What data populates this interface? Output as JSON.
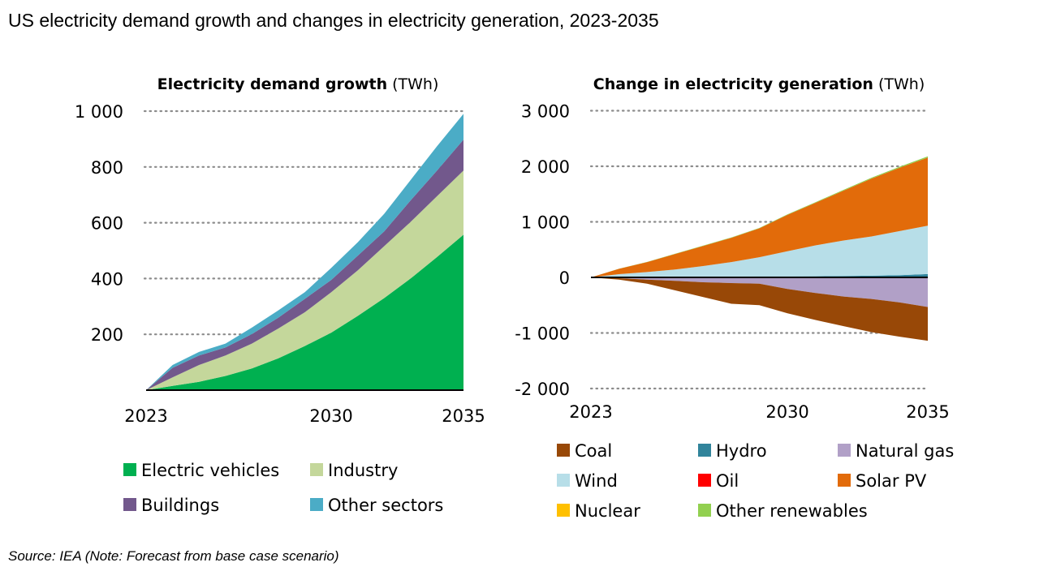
{
  "title": "US electricity demand growth and changes in electricity generation, 2023-2035",
  "source": "Source: IEA (Note: Forecast from base case scenario)",
  "chart_data": [
    {
      "type": "area",
      "stacked": true,
      "title_bold": "Electricity demand growth",
      "title_unit": "(TWh)",
      "x": [
        2023,
        2024,
        2025,
        2026,
        2027,
        2028,
        2029,
        2030,
        2031,
        2032,
        2033,
        2034,
        2035
      ],
      "x_tick_labels": [
        "2023",
        "2030",
        "2035"
      ],
      "x_tick_values": [
        2023,
        2030,
        2035
      ],
      "ylim": [
        0,
        1000
      ],
      "y_tick_values": [
        200,
        400,
        600,
        800,
        1000
      ],
      "y_tick_labels": [
        "200",
        "400",
        "600",
        "800",
        "1 000"
      ],
      "grid": "horizontal dotted",
      "legend_placement": "bottom",
      "series": [
        {
          "name": "Electric vehicles",
          "color": "#00b050",
          "values": [
            0,
            15,
            30,
            51,
            78,
            114,
            158,
            206,
            266,
            330,
            400,
            477,
            557
          ]
        },
        {
          "name": "Industry",
          "color": "#c4d79b",
          "values": [
            0,
            31,
            60,
            73,
            89,
            107,
            121,
            145,
            163,
            186,
            203,
            218,
            230
          ]
        },
        {
          "name": "Buildings",
          "color": "#72588c",
          "values": [
            0,
            34,
            34,
            29,
            34,
            39,
            48,
            44,
            53,
            53,
            77,
            92,
            111
          ]
        },
        {
          "name": "Other sectors",
          "color": "#4bacc6",
          "values": [
            0,
            10,
            13,
            14,
            23,
            26,
            24,
            43,
            48,
            63,
            73,
            87,
            92
          ]
        }
      ]
    },
    {
      "type": "area",
      "stacked": true,
      "title_bold": "Change in electricity generation",
      "title_unit": "(TWh)",
      "x": [
        2023,
        2024,
        2025,
        2026,
        2027,
        2028,
        2029,
        2030,
        2031,
        2032,
        2033,
        2034,
        2035
      ],
      "x_tick_labels": [
        "2023",
        "2030",
        "2035"
      ],
      "x_tick_values": [
        2023,
        2030,
        2035
      ],
      "ylim": [
        -2000,
        3000
      ],
      "y_tick_values": [
        -2000,
        -1000,
        0,
        1000,
        2000,
        3000
      ],
      "y_tick_labels": [
        "-2 000",
        "-1 000",
        "0",
        "1 000",
        "2 000",
        "3 000"
      ],
      "grid": "horizontal dotted",
      "legend_placement": "bottom",
      "series": [
        {
          "name": "Coal",
          "color": "#984807",
          "values": [
            0,
            -24,
            -73,
            -170,
            -267,
            -373,
            -388,
            -436,
            -485,
            -534,
            -597,
            -616,
            -607
          ]
        },
        {
          "name": "Hydro",
          "color": "#31849b",
          "values": [
            0,
            3,
            5,
            8,
            10,
            12,
            15,
            18,
            20,
            25,
            30,
            40,
            60
          ]
        },
        {
          "name": "Natural gas",
          "color": "#b1a0c7",
          "values": [
            0,
            -13,
            -36,
            -59,
            -82,
            -97,
            -106,
            -203,
            -274,
            -337,
            -380,
            -443,
            -525
          ]
        },
        {
          "name": "Wind",
          "color": "#b7dee8",
          "values": [
            0,
            50,
            84,
            125,
            188,
            260,
            347,
            452,
            557,
            639,
            707,
            794,
            871
          ]
        },
        {
          "name": "Oil",
          "color": "#ff0000",
          "values": [
            0,
            -2,
            -3,
            -4,
            -5,
            -5,
            -6,
            -6,
            -7,
            -7,
            -8,
            -8,
            -8
          ]
        },
        {
          "name": "Solar PV",
          "color": "#e26b0a",
          "values": [
            0,
            97,
            179,
            281,
            363,
            437,
            519,
            655,
            766,
            898,
            1043,
            1140,
            1227
          ]
        },
        {
          "name": "Nuclear",
          "color": "#ffc000",
          "values": [
            0,
            5,
            8,
            8,
            6,
            4,
            2,
            0,
            0,
            0,
            0,
            0,
            0
          ]
        },
        {
          "name": "Other renewables",
          "color": "#92d050",
          "values": [
            0,
            2,
            3,
            4,
            5,
            6,
            8,
            10,
            12,
            14,
            16,
            18,
            20
          ]
        }
      ]
    }
  ]
}
